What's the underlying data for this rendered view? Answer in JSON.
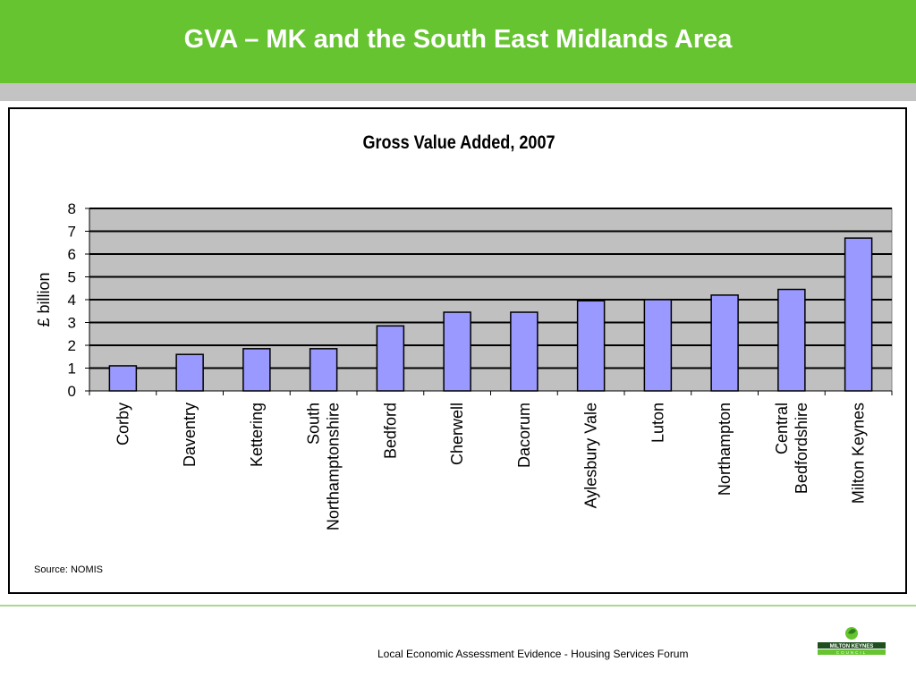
{
  "slide": {
    "title": "GVA – MK and the South East Midlands Area",
    "source": "Source: NOMIS",
    "footer": "Local Economic Assessment Evidence - Housing Services Forum",
    "logo": {
      "line1": "MILTON KEYNES",
      "line2": "COUNCIL",
      "icon": "leaf-icon"
    }
  },
  "colors": {
    "header": "#66c430",
    "bar": "#9999ff",
    "plot_bg": "#c0c0c0"
  },
  "chart_data": {
    "type": "bar",
    "title": "Gross Value Added, 2007",
    "xlabel": "",
    "ylabel": "£ billion",
    "ylim": [
      0,
      8
    ],
    "yticks": [
      0,
      1,
      2,
      3,
      4,
      5,
      6,
      7,
      8
    ],
    "grid": true,
    "legend": "none",
    "categories": [
      "Corby",
      "Daventry",
      "Kettering",
      "South Northamptonshire",
      "Bedford",
      "Cherwell",
      "Dacorum",
      "Aylesbury Vale",
      "Luton",
      "Northampton",
      "Central Bedfordshire",
      "Milton Keynes"
    ],
    "values": [
      1.1,
      1.6,
      1.85,
      1.85,
      2.85,
      3.45,
      3.45,
      3.95,
      4.0,
      4.2,
      4.45,
      6.7
    ]
  }
}
